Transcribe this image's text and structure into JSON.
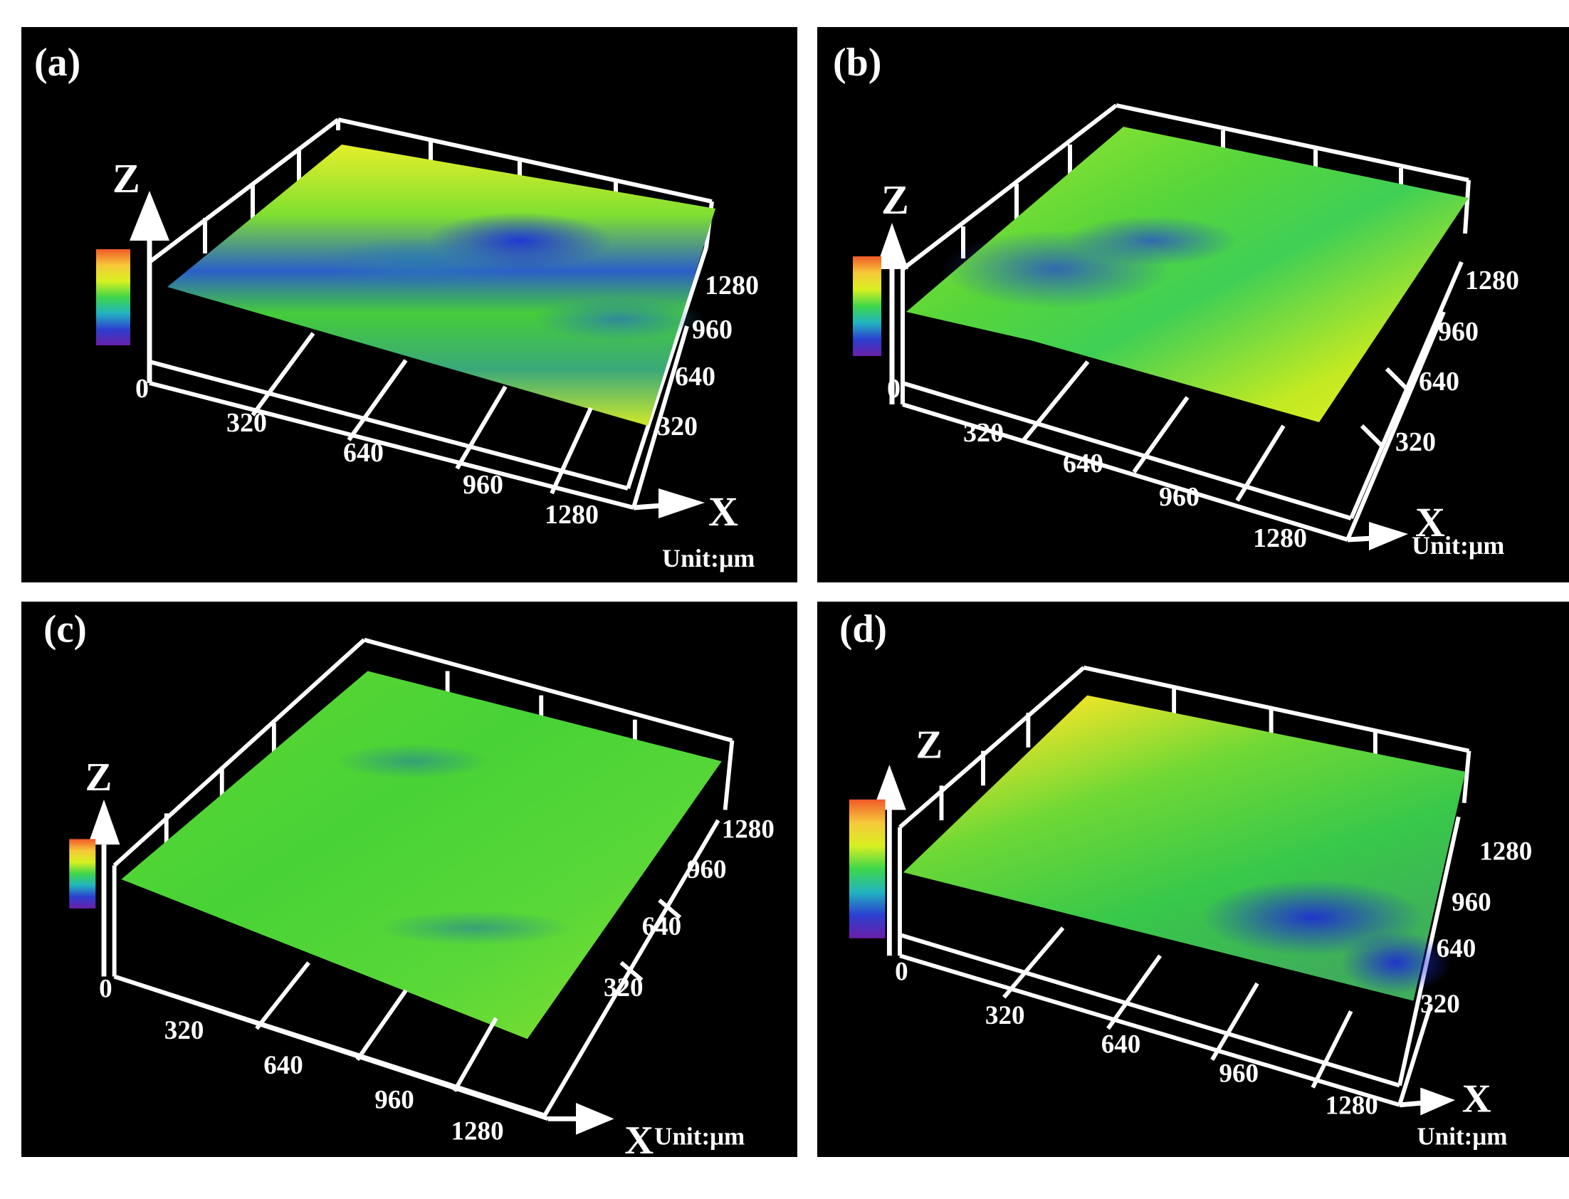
{
  "figure": {
    "panels": [
      {
        "id": "a",
        "label": "(a)",
        "surface_mix": "mixed-blue",
        "colorbar": [
          "#f05a28",
          "#f7c83a",
          "#d8f020",
          "#3ed64a",
          "#22b4c0",
          "#2b3fd0",
          "#6a1fa8"
        ]
      },
      {
        "id": "b",
        "label": "(b)",
        "surface_mix": "yellow-green",
        "colorbar": [
          "#f05a28",
          "#f7c83a",
          "#d8f020",
          "#3ed64a",
          "#22b4c0",
          "#2b3fd0",
          "#6a1fa8"
        ]
      },
      {
        "id": "c",
        "label": "(c)",
        "surface_mix": "green",
        "colorbar": [
          "#f05a28",
          "#f7c83a",
          "#d8f020",
          "#3ed64a",
          "#22b4c0",
          "#2b3fd0",
          "#6a1fa8"
        ]
      },
      {
        "id": "d",
        "label": "(d)",
        "surface_mix": "orange-top-blue-right",
        "colorbar": [
          "#f05a28",
          "#f7c83a",
          "#d8f020",
          "#3ed64a",
          "#22b4c0",
          "#2b3fd0",
          "#6a1fa8"
        ]
      }
    ],
    "axes": {
      "z_letter": "Z",
      "x_letter": "X",
      "zero_label": "0",
      "x_ticks": [
        "320",
        "640",
        "960",
        "1280"
      ],
      "y_ticks": [
        "1280",
        "960",
        "640",
        "320"
      ],
      "unit": "Unit:μm"
    }
  }
}
